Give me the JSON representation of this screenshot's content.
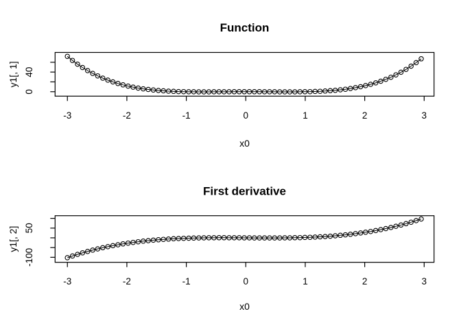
{
  "figure": {
    "background": "#ffffff",
    "stroke_color": "#000000",
    "marker": "open-circle",
    "plot_type": "line-with-points"
  },
  "chart_data": [
    {
      "type": "line",
      "title": "Function",
      "xlabel": "x0",
      "ylabel": "y1[, 1]",
      "grid": false,
      "legend": "none",
      "color": "#000000",
      "marker": "open-circle",
      "xlim": [
        -3.207,
        3.166
      ],
      "ylim": [
        -9.07,
        79.97
      ],
      "x_ticks": {
        "values": [
          -3,
          -2,
          -1,
          0,
          1,
          2,
          3
        ],
        "labels": [
          "-3",
          "-2",
          "-1",
          "0",
          "1",
          "2",
          "3"
        ]
      },
      "y_ticks": {
        "values": [
          0,
          20,
          40,
          60
        ],
        "labels": [
          "0",
          "",
          "40",
          ""
        ]
      },
      "x": [
        -3,
        -2.915,
        -2.83,
        -2.745,
        -2.66,
        -2.575,
        -2.49,
        -2.405,
        -2.32,
        -2.235,
        -2.15,
        -2.065,
        -1.98,
        -1.895,
        -1.81,
        -1.725,
        -1.64,
        -1.555,
        -1.47,
        -1.385,
        -1.3,
        -1.215,
        -1.13,
        -1.045,
        -0.96,
        -0.875,
        -0.79,
        -0.705,
        -0.62,
        -0.535,
        -0.45,
        -0.365,
        -0.28,
        -0.195,
        -0.11,
        -0.025,
        0.06,
        0.145,
        0.23,
        0.315,
        0.4,
        0.485,
        0.57,
        0.655,
        0.74,
        0.825,
        0.91,
        0.995,
        1.08,
        1.165,
        1.25,
        1.335,
        1.42,
        1.505,
        1.59,
        1.675,
        1.76,
        1.845,
        1.93,
        2.015,
        2.1,
        2.185,
        2.27,
        2.355,
        2.44,
        2.525,
        2.61,
        2.695,
        2.78,
        2.865,
        2.95
      ],
      "y": [
        72,
        63.71,
        56.13,
        49.24,
        42.99,
        37.33,
        32.24,
        27.67,
        23.59,
        19.96,
        16.74,
        13.92,
        11.45,
        9.3,
        7.46,
        5.88,
        4.54,
        3.43,
        2.51,
        1.76,
        1.17,
        0.7,
        0.35,
        0.1,
        -0.07,
        -0.18,
        -0.23,
        -0.25,
        -0.24,
        -0.2,
        -0.16,
        -0.12,
        -0.07,
        -0.04,
        -0.01,
        0,
        0,
        -0.02,
        -0.05,
        -0.09,
        -0.13,
        -0.18,
        -0.22,
        -0.25,
        -0.25,
        -0.22,
        -0.14,
        -0.01,
        0.19,
        0.49,
        0.88,
        1.39,
        2.05,
        2.86,
        3.86,
        5.07,
        6.5,
        8.18,
        10.15,
        12.43,
        15.04,
        18.02,
        21.4,
        25.21,
        29.49,
        34.27,
        39.59,
        45.49,
        52,
        59.17,
        67.03
      ]
    },
    {
      "type": "line",
      "title": "First derivative",
      "xlabel": "x0",
      "ylabel": "y1[, 2]",
      "grid": false,
      "legend": "none",
      "color": "#000000",
      "marker": "open-circle",
      "xlim": [
        -3.207,
        3.166
      ],
      "ylim": [
        -125.7,
        113.7
      ],
      "x_ticks": {
        "values": [
          -3,
          -2,
          -1,
          0,
          1,
          2,
          3
        ],
        "labels": [
          "-3",
          "-2",
          "-1",
          "0",
          "1",
          "2",
          "3"
        ]
      },
      "y_ticks": {
        "values": [
          -100,
          -50,
          0,
          50,
          100
        ],
        "labels": [
          "-100",
          "",
          "",
          "50",
          ""
        ]
      },
      "x": [
        -3,
        -2.915,
        -2.83,
        -2.745,
        -2.66,
        -2.575,
        -2.49,
        -2.405,
        -2.32,
        -2.235,
        -2.15,
        -2.065,
        -1.98,
        -1.895,
        -1.81,
        -1.725,
        -1.64,
        -1.555,
        -1.47,
        -1.385,
        -1.3,
        -1.215,
        -1.13,
        -1.045,
        -0.96,
        -0.875,
        -0.79,
        -0.705,
        -0.62,
        -0.535,
        -0.45,
        -0.365,
        -0.28,
        -0.195,
        -0.11,
        -0.025,
        0.06,
        0.145,
        0.23,
        0.315,
        0.4,
        0.485,
        0.57,
        0.655,
        0.74,
        0.825,
        0.91,
        0.995,
        1.08,
        1.165,
        1.25,
        1.335,
        1.42,
        1.505,
        1.59,
        1.675,
        1.76,
        1.845,
        1.93,
        2.015,
        2.1,
        2.185,
        2.27,
        2.355,
        2.44,
        2.525,
        2.61,
        2.695,
        2.78,
        2.865,
        2.95
      ],
      "y": [
        -102,
        -93.26,
        -85,
        -77.25,
        -69.96,
        -63.15,
        -56.77,
        -50.83,
        -45.31,
        -40.19,
        -35.45,
        -31.09,
        -27.09,
        -23.43,
        -20.1,
        -17.08,
        -14.36,
        -11.93,
        -9.77,
        -7.86,
        -6.19,
        -4.74,
        -3.51,
        -2.48,
        -1.62,
        -0.93,
        -0.39,
        0.01,
        0.29,
        0.46,
        0.54,
        0.53,
        0.47,
        0.36,
        0.22,
        0.05,
        -0.12,
        -0.28,
        -0.41,
        -0.51,
        -0.54,
        -0.51,
        -0.4,
        -0.19,
        0.14,
        0.6,
        1.19,
        1.95,
        2.88,
        3.99,
        5.31,
        6.85,
        8.61,
        10.63,
        12.9,
        15.45,
        18.29,
        21.43,
        24.9,
        28.69,
        32.84,
        37.36,
        42.25,
        47.53,
        53.23,
        59.34,
        65.9,
        72.91,
        80.38,
        88.34,
        96.79
      ]
    }
  ]
}
